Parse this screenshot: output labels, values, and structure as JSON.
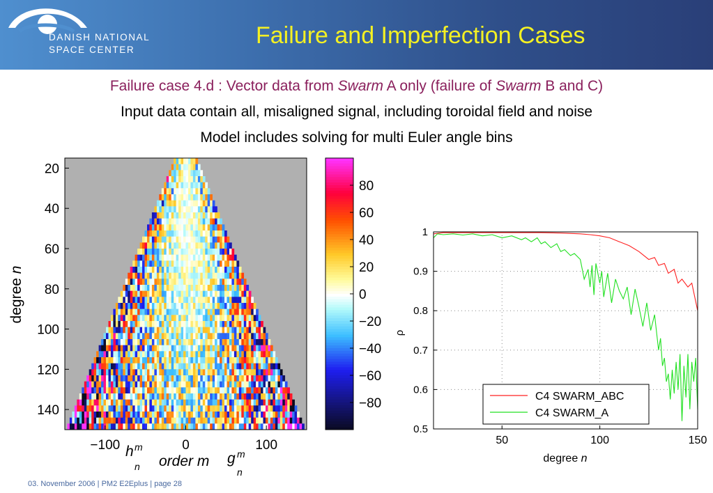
{
  "header": {
    "logo_line1": "DANISH NATIONAL",
    "logo_line2": "SPACE CENTER",
    "title": "Failure and Imperfection Cases"
  },
  "subtitle": {
    "line1_prefix": "Failure case 4.d : Vector data from ",
    "line1_italic1": "Swarm",
    "line1_middle": " A only (failure of ",
    "line1_italic2": "Swarm",
    "line1_suffix": " B and C)",
    "line2": "Input data contain all, misaligned signal, including toroidal field and noise",
    "line3": "Model includes solving for multi Euler angle bins"
  },
  "footer": "03. November  2006 | PM2 E2Eplus | page 28",
  "colors": {
    "header_start": "#4f8fcf",
    "header_end": "#2a3f78",
    "title": "#f4f023",
    "subtitle_line1": "#8a1f5c",
    "series_abc": "#ff2020",
    "series_a": "#20e020",
    "background_gray": "#b0b0b0"
  },
  "chart_data": [
    {
      "type": "heatmap",
      "ylabel_text": "degree ",
      "ylabel_italic": "n",
      "x_ticks": [
        "−100",
        "0",
        "100"
      ],
      "x_tick_values": [
        -100,
        0,
        100
      ],
      "y_ticks": [
        "20",
        "40",
        "60",
        "80",
        "100",
        "120",
        "140"
      ],
      "y_tick_values": [
        20,
        40,
        60,
        80,
        100,
        120,
        140
      ],
      "xlim": [
        -150,
        150
      ],
      "ylim": [
        15,
        150
      ],
      "xlabel_left_h": "h",
      "xlabel_left_sup": "m",
      "xlabel_left_sub": "n",
      "xlabel_mid": "order m",
      "xlabel_right_g": "g",
      "xlabel_right_sup": "m",
      "xlabel_right_sub": "n",
      "colorbar_ticks": [
        "80",
        "60",
        "40",
        "20",
        "0",
        "−20",
        "−40",
        "−60",
        "−80"
      ],
      "colorbar_values": [
        80,
        60,
        40,
        20,
        0,
        -20,
        -40,
        -60,
        -80
      ],
      "colorbar_range": [
        -100,
        100
      ]
    },
    {
      "type": "line",
      "ylabel": "ρ",
      "xlabel_text": "degree ",
      "xlabel_italic": "n",
      "x_ticks": [
        "50",
        "100",
        "150"
      ],
      "x_tick_values": [
        50,
        100,
        150
      ],
      "y_ticks": [
        "1",
        "0.9",
        "0.8",
        "0.7",
        "0.6",
        "0.5"
      ],
      "y_tick_values": [
        1,
        0.9,
        0.8,
        0.7,
        0.6,
        0.5
      ],
      "xlim": [
        15,
        150
      ],
      "ylim": [
        0.5,
        1.0
      ],
      "grid": true,
      "legend_position": "bottom-right",
      "series": [
        {
          "name": "C4 SWARM_ABC",
          "color": "#ff2020",
          "x": [
            15,
            20,
            30,
            40,
            50,
            60,
            70,
            80,
            90,
            95,
            100,
            105,
            110,
            115,
            120,
            125,
            128,
            130,
            133,
            135,
            138,
            140,
            142,
            145,
            147,
            150
          ],
          "y": [
            0.995,
            0.998,
            0.998,
            0.998,
            0.998,
            0.998,
            0.998,
            0.997,
            0.995,
            0.993,
            0.99,
            0.985,
            0.975,
            0.965,
            0.95,
            0.93,
            0.935,
            0.915,
            0.92,
            0.895,
            0.905,
            0.87,
            0.88,
            0.86,
            0.87,
            0.8
          ]
        },
        {
          "name": "C4 SWARM_A",
          "color": "#20e020",
          "x": [
            15,
            17,
            20,
            25,
            30,
            35,
            40,
            45,
            50,
            55,
            60,
            62,
            65,
            68,
            70,
            72,
            75,
            78,
            80,
            82,
            85,
            87,
            90,
            92,
            94,
            95,
            96,
            97,
            98,
            100,
            101,
            102,
            104,
            106,
            108,
            110,
            112,
            114,
            116,
            118,
            120,
            122,
            124,
            126,
            128,
            130,
            131,
            132,
            133,
            134,
            135,
            136,
            137,
            138,
            139,
            140,
            141,
            142,
            143,
            144,
            145,
            146,
            147,
            148,
            149,
            150
          ],
          "y": [
            0.985,
            0.995,
            0.993,
            0.995,
            0.992,
            0.995,
            0.99,
            0.993,
            0.985,
            0.99,
            0.98,
            0.985,
            0.975,
            0.985,
            0.97,
            0.975,
            0.96,
            0.97,
            0.95,
            0.955,
            0.94,
            0.945,
            0.93,
            0.88,
            0.905,
            0.86,
            0.915,
            0.84,
            0.92,
            0.87,
            0.9,
            0.835,
            0.895,
            0.82,
            0.88,
            0.85,
            0.83,
            0.86,
            0.79,
            0.855,
            0.81,
            0.76,
            0.82,
            0.75,
            0.79,
            0.7,
            0.73,
            0.66,
            0.68,
            0.62,
            0.64,
            0.575,
            0.65,
            0.59,
            0.67,
            0.6,
            0.69,
            0.52,
            0.66,
            0.58,
            0.69,
            0.55,
            0.67,
            0.62,
            0.68,
            0.55
          ]
        }
      ]
    }
  ]
}
